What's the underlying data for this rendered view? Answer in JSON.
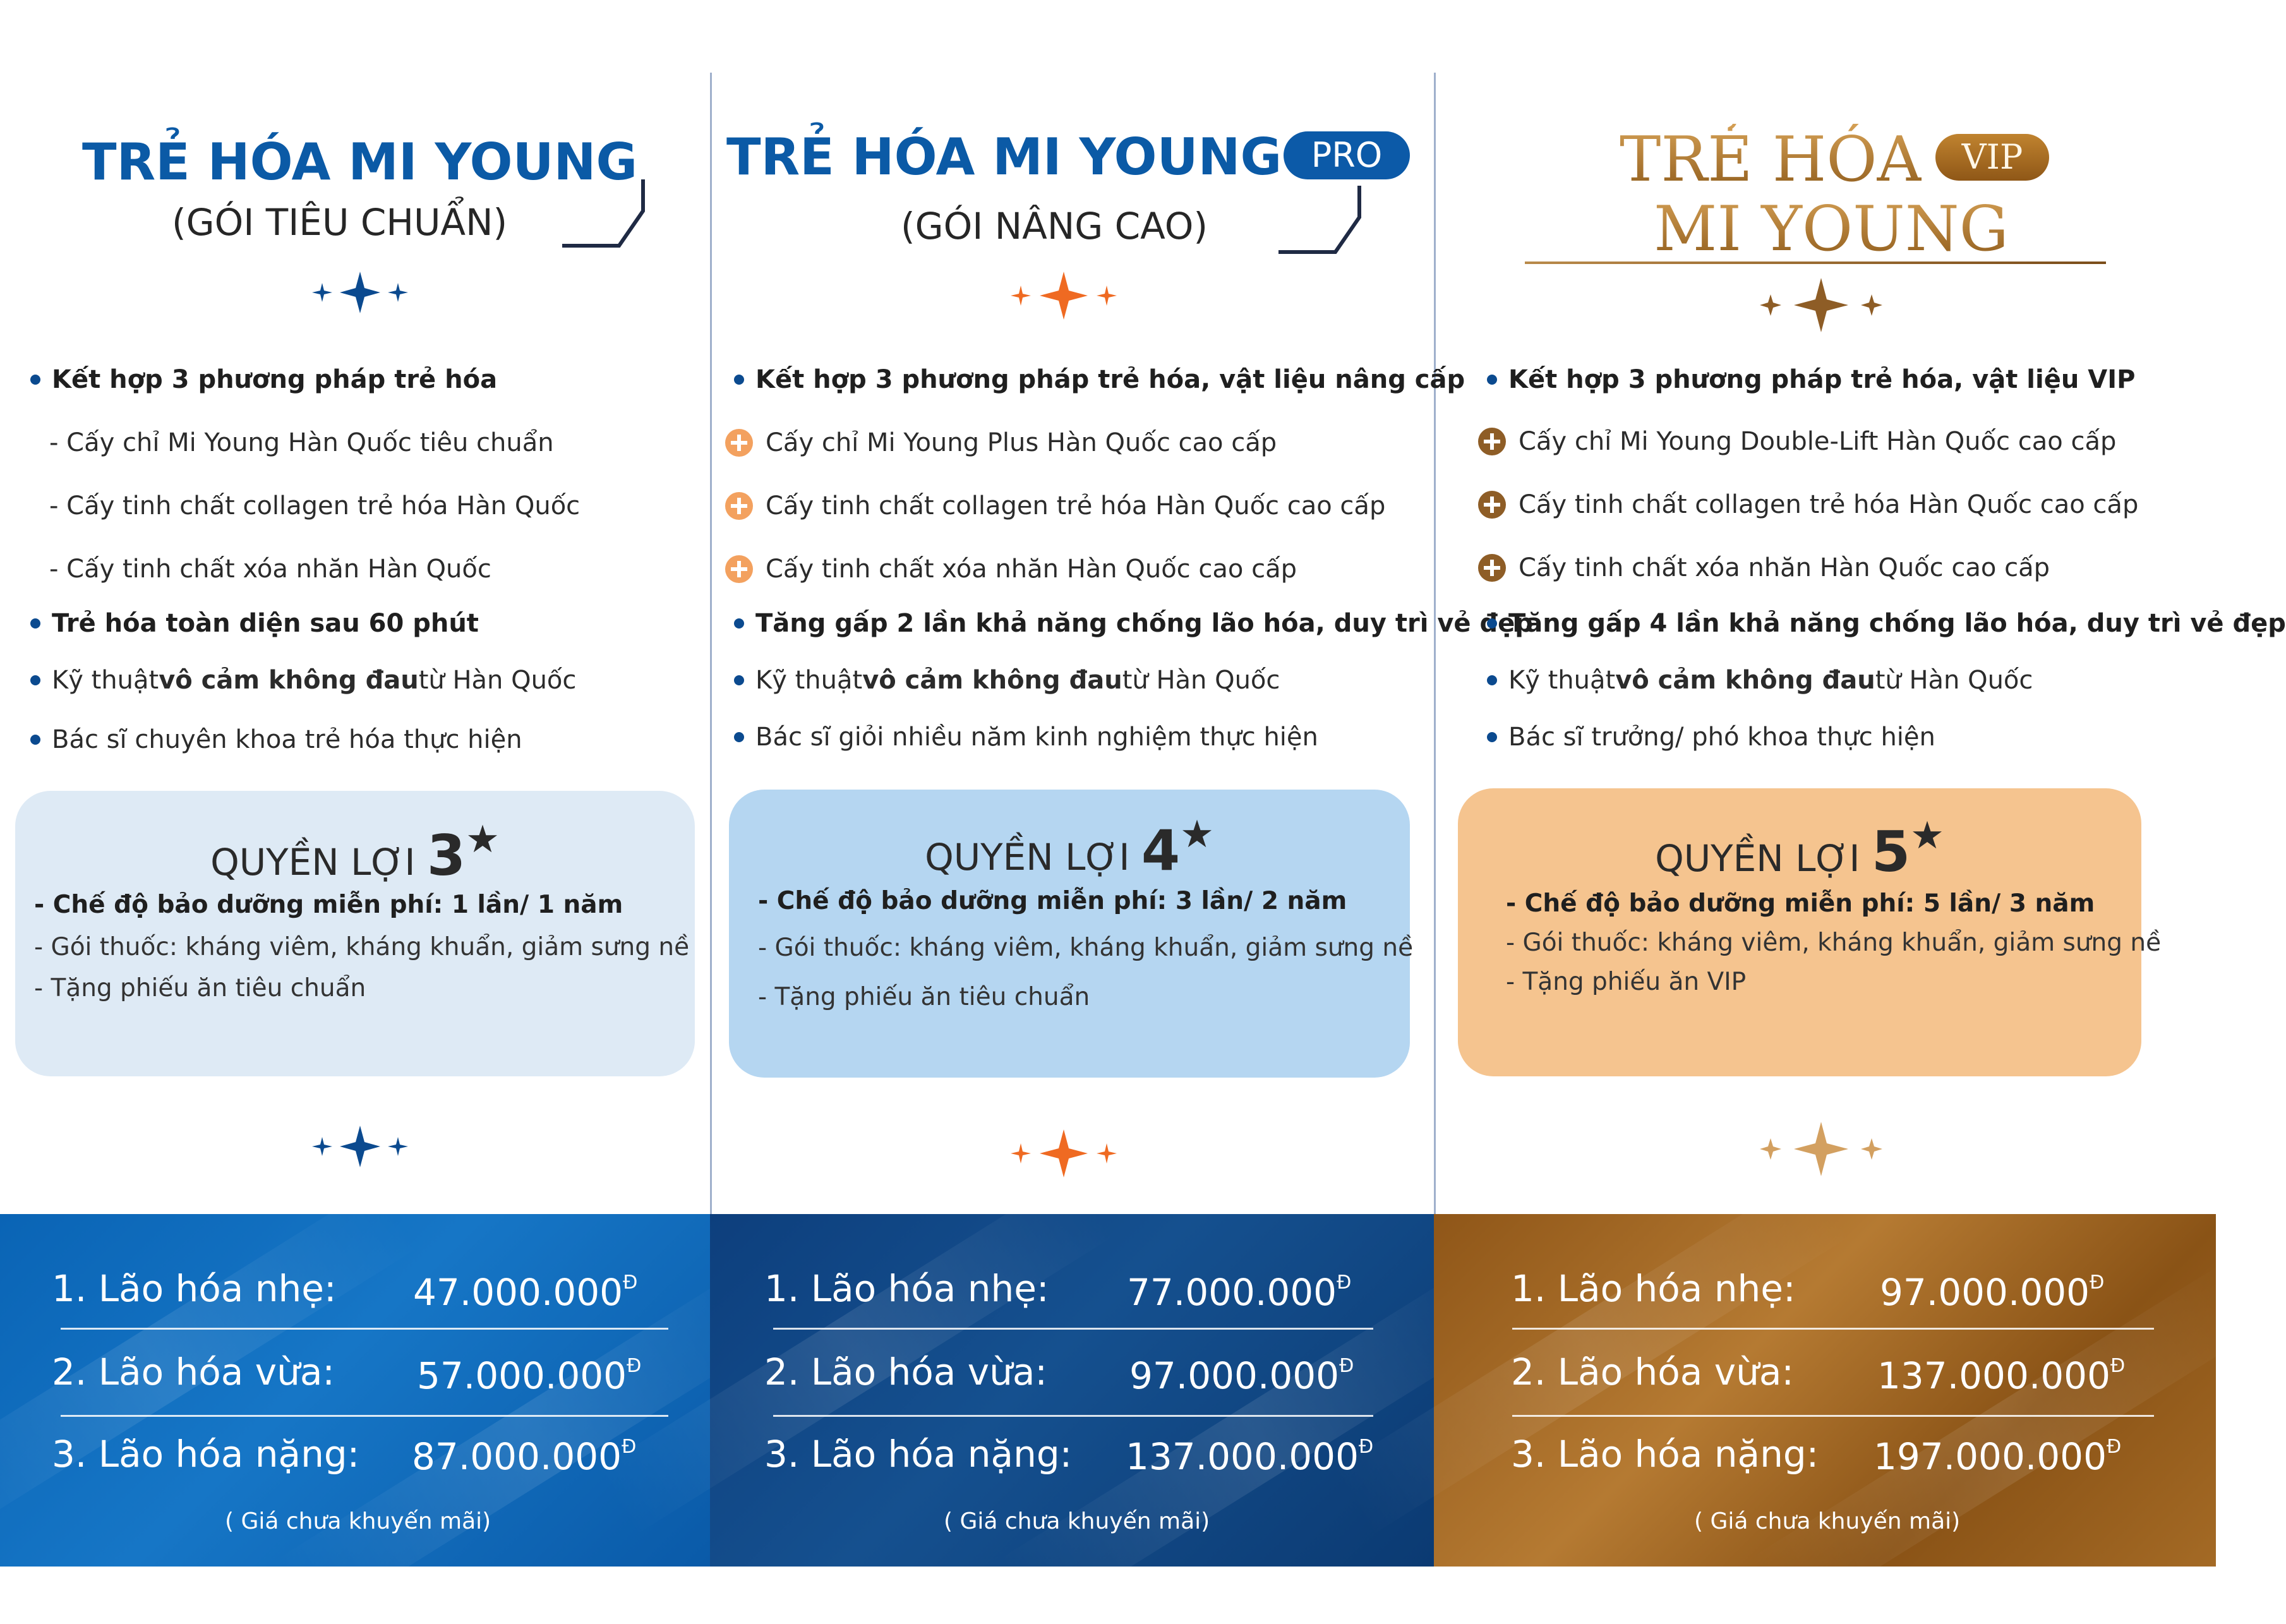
{
  "colors": {
    "blue": "#0b5aa6",
    "navy": "#0d3d78",
    "orange": "#ef6a22",
    "gold": "#a56d24"
  },
  "packages": [
    {
      "title": "TRẺ HÓA MI YOUNG",
      "subtitle": "(GÓI TIÊU CHUẨN)",
      "features": [
        "Kết hợp 3 phương pháp trẻ hóa",
        "- Cấy chỉ Mi Young Hàn Quốc tiêu chuẩn",
        "- Cấy tinh chất collagen trẻ hóa Hàn Quốc",
        "- Cấy tinh chất xóa nhăn Hàn Quốc",
        "Trẻ hóa toàn diện sau 60 phút",
        {
          "pre": "Kỹ thuật ",
          "bold": "vô cảm không đau",
          "post": " từ Hàn Quốc"
        },
        "Bác sĩ chuyên khoa trẻ hóa thực hiện"
      ],
      "benefit_label": "QUYỀN LỢI",
      "benefit_stars": "3",
      "benefit_lines": [
        "- Chế độ bảo dưỡng miễn phí: 1 lần/ 1 năm",
        "- Gói thuốc: kháng viêm, kháng khuẩn, giảm sưng nề",
        "- Tặng phiếu ăn tiêu chuẩn"
      ],
      "prices": [
        {
          "label": "1. Lão hóa nhẹ:",
          "value": "47.000.000"
        },
        {
          "label": "2. Lão hóa vừa:",
          "value": "57.000.000"
        },
        {
          "label": "3. Lão hóa nặng:",
          "value": "87.000.000"
        }
      ],
      "currency": "Đ",
      "note": "( Giá chưa khuyến mãi)"
    },
    {
      "title": "TRẺ HÓA MI YOUNG",
      "badge": "PRO",
      "subtitle": "(GÓI NÂNG CAO)",
      "features": [
        "Kết hợp 3 phương pháp trẻ hóa, vật liệu nâng cấp",
        "Cấy chỉ Mi Young Plus Hàn Quốc cao cấp",
        "Cấy tinh chất collagen trẻ hóa Hàn Quốc cao cấp",
        "Cấy tinh chất xóa nhăn Hàn Quốc cao cấp",
        "Tăng gấp 2 lần khả năng chống lão hóa, duy trì vẻ đẹp",
        {
          "pre": "Kỹ thuật ",
          "bold": "vô cảm không đau",
          "post": " từ Hàn Quốc"
        },
        "Bác sĩ giỏi nhiều năm kinh nghiệm thực hiện"
      ],
      "benefit_label": "QUYỀN LỢI",
      "benefit_stars": "4",
      "benefit_lines": [
        "- Chế độ bảo dưỡng miễn phí: 3 lần/ 2 năm",
        "- Gói thuốc: kháng viêm, kháng khuẩn, giảm sưng nề",
        "- Tặng phiếu ăn tiêu chuẩn"
      ],
      "prices": [
        {
          "label": "1. Lão hóa nhẹ:",
          "value": "77.000.000"
        },
        {
          "label": "2. Lão hóa vừa:",
          "value": "97.000.000"
        },
        {
          "label": "3. Lão hóa nặng:",
          "value": "137.000.000"
        }
      ],
      "currency": "Đ",
      "note": "( Giá chưa khuyến mãi)"
    },
    {
      "title_line1": "TRẺ HÓA",
      "badge": "VIP",
      "title_line2": "MI YOUNG",
      "features": [
        "Kết hợp 3 phương pháp trẻ hóa, vật liệu VIP",
        "Cấy chỉ Mi Young Double-Lift Hàn Quốc cao cấp",
        "Cấy tinh chất collagen trẻ hóa Hàn Quốc cao cấp",
        "Cấy tinh chất xóa nhăn Hàn Quốc cao cấp",
        "Tăng gấp 4 lần khả năng chống lão hóa, duy trì vẻ đẹp",
        {
          "pre": "Kỹ thuật ",
          "bold": "vô cảm không đau",
          "post": " từ Hàn Quốc"
        },
        "Bác sĩ trưởng/ phó khoa thực hiện"
      ],
      "benefit_label": "QUYỀN LỢI",
      "benefit_stars": "5",
      "benefit_lines": [
        "- Chế độ bảo dưỡng miễn phí: 5 lần/ 3 năm",
        "- Gói thuốc: kháng viêm, kháng khuẩn, giảm sưng nề",
        "- Tặng phiếu ăn VIP"
      ],
      "prices": [
        {
          "label": "1. Lão hóa nhẹ:",
          "value": "97.000.000"
        },
        {
          "label": "2. Lão hóa vừa:",
          "value": "137.000.000"
        },
        {
          "label": "3. Lão hóa nặng:",
          "value": "197.000.000"
        }
      ],
      "currency": "Đ",
      "note": "( Giá chưa khuyến mãi)"
    }
  ],
  "icons": {
    "sparkle": "sparkle-icon",
    "bullet": "bullet-dot-icon",
    "plus": "plus-circle-icon"
  }
}
